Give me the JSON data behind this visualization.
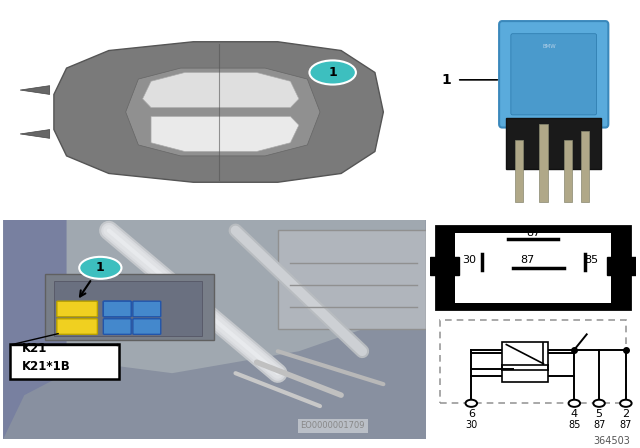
{
  "fig_bg": "#ffffff",
  "car_panel_bg": "#e0e0e0",
  "teal_circle": "#3dbfbf",
  "yellow_box": "#f0d020",
  "blue_relay": "#5aaad8",
  "black": "#000000",
  "part_number": "364503",
  "eo_number": "EO0000001709",
  "k_label1": "K21",
  "k_label2": "K21*1B",
  "item_number": "1",
  "car_body_color": "#888888",
  "car_roof_color": "#999999",
  "car_window_color": "#e8e8e8",
  "engine_bg_color": "#b0b8c0",
  "engine_strut_color": "#c8ccd0",
  "relay_diag_border": "#000000"
}
